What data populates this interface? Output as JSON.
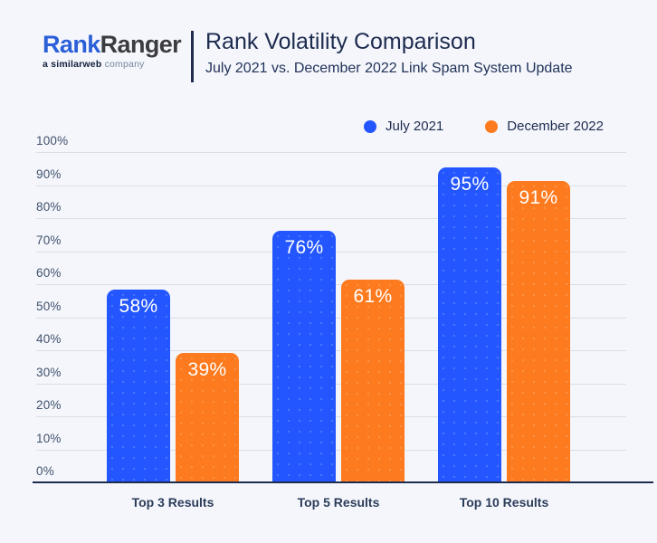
{
  "header": {
    "logo": {
      "brand_part1": "Rank",
      "brand_part2": "Ranger",
      "tagline_prefix": "a ",
      "tagline_brand": "similarweb",
      "tagline_suffix": " company"
    },
    "title": "Rank Volatility Comparison",
    "subtitle": "July 2021 vs. December 2022 Link Spam System Update"
  },
  "colors": {
    "background": "#F4F6FB",
    "blue": "#2356FE",
    "orange": "#FD7A1E",
    "grid": "#DADEE7",
    "axis": "#1D2B4F",
    "logo_blue": "#2B5FD8"
  },
  "chart_data": {
    "type": "bar",
    "title": "Rank Volatility Comparison",
    "subtitle": "July 2021 vs. December 2022 Link Spam System Update",
    "categories": [
      "Top 3 Results",
      "Top 5 Results",
      "Top 10 Results"
    ],
    "series": [
      {
        "name": "July 2021",
        "color": "#2356FE",
        "values": [
          58,
          76,
          95
        ]
      },
      {
        "name": "December 2022",
        "color": "#FD7A1E",
        "values": [
          39,
          61,
          91
        ]
      }
    ],
    "value_label_suffix": "%",
    "yticks": [
      100,
      90,
      80,
      70,
      60,
      50,
      40,
      30,
      20,
      10,
      0
    ],
    "ytick_labels": [
      "100%",
      "90%",
      "80%",
      "70%",
      "60%",
      "50%",
      "40%",
      "30%",
      "20%",
      "10%",
      "0%"
    ],
    "ylim": [
      0,
      100
    ],
    "grid": true,
    "legend_position": "top-right",
    "xlabel": "",
    "ylabel": ""
  }
}
